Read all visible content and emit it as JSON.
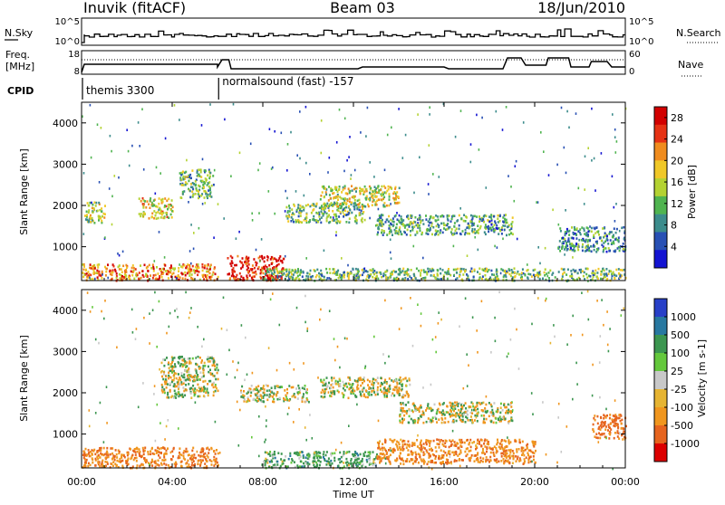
{
  "header": {
    "station": "Inuvik (fitACF)",
    "beam": "Beam 03",
    "date": "18/Jun/2010"
  },
  "strip": {
    "nsky_label": "N.Sky",
    "nsky_ticks": [
      "10^5",
      "10^0"
    ],
    "nsearch_label": "N.Search",
    "nsearch_ticks": [
      "10^5",
      "10^0"
    ],
    "freq_label_1": "Freq.",
    "freq_label_2": "[MHz]",
    "freq_ticks": [
      "18",
      "8"
    ],
    "nave_label": "Nave",
    "nave_ticks": [
      "60",
      "0"
    ],
    "cpid_label": "CPID",
    "cpid_segments": [
      {
        "start_hour": 0.0,
        "text": "themis 3300"
      },
      {
        "start_hour": 6.05,
        "text": "normalsound (fast) -157"
      }
    ]
  },
  "x_axis": {
    "label": "Time UT",
    "ticks": [
      "00:00",
      "04:00",
      "08:00",
      "12:00",
      "16:00",
      "20:00",
      "00:00"
    ],
    "tick_hours": [
      0,
      4,
      8,
      12,
      16,
      20,
      24
    ],
    "range_hours": [
      0,
      24
    ]
  },
  "power_panel": {
    "ylabel": "Slant Range [km]",
    "yticks": [
      "4000",
      "3000",
      "2000",
      "1000"
    ],
    "ytick_values": [
      4000,
      3000,
      2000,
      1000
    ],
    "yrange_km": [
      180,
      4500
    ],
    "colorbar_label": "Power [dB]",
    "colorbar_ticks": [
      "28",
      "24",
      "20",
      "16",
      "12",
      "8",
      "4"
    ],
    "colorbar_tick_values": [
      28,
      24,
      20,
      16,
      12,
      8,
      4
    ],
    "colorbar_range": [
      0,
      30
    ],
    "colorbar_colors": [
      "#1414d2",
      "#2850b4",
      "#3c8c8c",
      "#50b450",
      "#b4d232",
      "#f0c828",
      "#f08c1e",
      "#e63214",
      "#d20000"
    ]
  },
  "velocity_panel": {
    "ylabel": "Slant Range [km]",
    "yticks": [
      "4000",
      "3000",
      "2000",
      "1000"
    ],
    "ytick_values": [
      4000,
      3000,
      2000,
      1000
    ],
    "yrange_km": [
      180,
      4500
    ],
    "colorbar_label": "Velocity [m s-1]",
    "colorbar_ticks": [
      "1000",
      "500",
      "100",
      "25",
      "-25",
      "-100",
      "-500",
      "-1000"
    ],
    "colorbar_colors": [
      "#2840c8",
      "#2878a0",
      "#3c9650",
      "#64c83c",
      "#c8c8c8",
      "#e6b432",
      "#f0961e",
      "#e6641e",
      "#dc0000"
    ]
  },
  "chart_data": [
    {
      "type": "heatmap",
      "title": "Power",
      "xlabel": "Time UT",
      "ylabel": "Slant Range [km]",
      "xlim_hours": [
        0,
        24
      ],
      "ylim_km": [
        180,
        4500
      ],
      "colorbar_label": "Power [dB]",
      "colorbar_ticks": [
        4,
        8,
        12,
        16,
        20,
        24,
        28
      ],
      "scatter_regions": [
        {
          "t": [
            0.0,
            6.0
          ],
          "r": [
            200,
            600
          ],
          "level_db": 22
        },
        {
          "t": [
            0.1,
            1.0
          ],
          "r": [
            1600,
            2100
          ],
          "level_db": 14
        },
        {
          "t": [
            2.5,
            4.0
          ],
          "r": [
            1700,
            2200
          ],
          "level_db": 18
        },
        {
          "t": [
            4.3,
            5.8
          ],
          "r": [
            2200,
            2900
          ],
          "level_db": 12
        },
        {
          "t": [
            6.4,
            8.9
          ],
          "r": [
            200,
            800
          ],
          "level_db": 28
        },
        {
          "t": [
            9.0,
            12.5
          ],
          "r": [
            1600,
            2100
          ],
          "level_db": 12
        },
        {
          "t": [
            10.5,
            14.0
          ],
          "r": [
            2000,
            2500
          ],
          "level_db": 16
        },
        {
          "t": [
            13.0,
            19.0
          ],
          "r": [
            1300,
            1800
          ],
          "level_db": 10
        },
        {
          "t": [
            8.0,
            24.0
          ],
          "r": [
            200,
            500
          ],
          "level_db": 12
        },
        {
          "t": [
            21.0,
            24.0
          ],
          "r": [
            900,
            1500
          ],
          "level_db": 8
        }
      ]
    },
    {
      "type": "heatmap",
      "title": "Velocity",
      "xlabel": "Time UT",
      "ylabel": "Slant Range [km]",
      "xlim_hours": [
        0,
        24
      ],
      "ylim_km": [
        180,
        4500
      ],
      "colorbar_label": "Velocity [m s-1]",
      "colorbar_ticks": [
        1000,
        500,
        100,
        25,
        -25,
        -100,
        -500,
        -1000
      ],
      "scatter_regions": [
        {
          "t": [
            0.0,
            6.0
          ],
          "r": [
            200,
            700
          ],
          "velocity": -300
        },
        {
          "t": [
            3.5,
            6.0
          ],
          "r": [
            1900,
            2900
          ],
          "velocity": 0
        },
        {
          "t": [
            7.0,
            10.0
          ],
          "r": [
            1800,
            2200
          ],
          "velocity": 0
        },
        {
          "t": [
            10.5,
            14.5
          ],
          "r": [
            1900,
            2400
          ],
          "velocity": 0
        },
        {
          "t": [
            14.0,
            19.0
          ],
          "r": [
            1300,
            1800
          ],
          "velocity": 0
        },
        {
          "t": [
            8.0,
            13.0
          ],
          "r": [
            200,
            600
          ],
          "velocity": 150
        },
        {
          "t": [
            13.0,
            20.0
          ],
          "r": [
            300,
            900
          ],
          "velocity": -250
        },
        {
          "t": [
            22.5,
            24.0
          ],
          "r": [
            900,
            1500
          ],
          "velocity": -400
        }
      ]
    }
  ]
}
